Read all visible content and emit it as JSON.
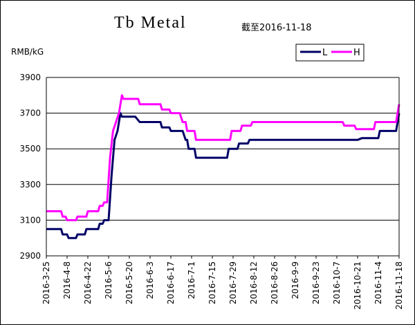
{
  "chart_data": {
    "type": "line",
    "title": "Tb Metal",
    "subtitle": "截至2016-11-18",
    "ylabel": "RMB/kG",
    "ylim": [
      2900,
      3900
    ],
    "yticks": [
      "2900",
      "3100",
      "3300",
      "3500",
      "3700",
      "3900"
    ],
    "xticks": [
      "2016-3-25",
      "2016-4-8",
      "2016-4-22",
      "2016-5-6",
      "2016-5-20",
      "2016-6-3",
      "2016-6-17",
      "2016-7-1",
      "2016-7-15",
      "2016-7-29",
      "2016-8-12",
      "2016-8-26",
      "2016-9-9",
      "2016-9-23",
      "2016-10-7",
      "2016-10-21",
      "2016-11-4",
      "2016-11-18"
    ],
    "grid": true,
    "legend": "top-right",
    "series": [
      {
        "name": "L",
        "color": "#000066",
        "points": [
          [
            "2016-3-25",
            3050
          ],
          [
            "2016-4-4",
            3050
          ],
          [
            "2016-4-5",
            3020
          ],
          [
            "2016-4-8",
            3020
          ],
          [
            "2016-4-9",
            3000
          ],
          [
            "2016-4-14",
            3000
          ],
          [
            "2016-4-15",
            3020
          ],
          [
            "2016-4-20",
            3020
          ],
          [
            "2016-4-21",
            3050
          ],
          [
            "2016-4-29",
            3050
          ],
          [
            "2016-4-30",
            3080
          ],
          [
            "2016-5-2",
            3080
          ],
          [
            "2016-5-3",
            3100
          ],
          [
            "2016-5-6",
            3100
          ],
          [
            "2016-5-8",
            3350
          ],
          [
            "2016-5-10",
            3550
          ],
          [
            "2016-5-12",
            3600
          ],
          [
            "2016-5-14",
            3700
          ],
          [
            "2016-5-15",
            3680
          ],
          [
            "2016-5-24",
            3680
          ],
          [
            "2016-5-27",
            3650
          ],
          [
            "2016-6-10",
            3650
          ],
          [
            "2016-6-11",
            3620
          ],
          [
            "2016-6-16",
            3620
          ],
          [
            "2016-6-17",
            3600
          ],
          [
            "2016-6-25",
            3600
          ],
          [
            "2016-6-27",
            3550
          ],
          [
            "2016-6-28",
            3550
          ],
          [
            "2016-6-29",
            3500
          ],
          [
            "2016-7-3",
            3500
          ],
          [
            "2016-7-4",
            3450
          ],
          [
            "2016-7-25",
            3450
          ],
          [
            "2016-7-26",
            3500
          ],
          [
            "2016-8-1",
            3500
          ],
          [
            "2016-8-2",
            3530
          ],
          [
            "2016-8-8",
            3530
          ],
          [
            "2016-8-9",
            3550
          ],
          [
            "2016-10-21",
            3550
          ],
          [
            "2016-10-24",
            3560
          ],
          [
            "2016-11-4",
            3560
          ],
          [
            "2016-11-5",
            3600
          ],
          [
            "2016-11-16",
            3600
          ],
          [
            "2016-11-18",
            3700
          ]
        ]
      },
      {
        "name": "H",
        "color": "#ff00ff",
        "points": [
          [
            "2016-3-25",
            3150
          ],
          [
            "2016-4-4",
            3150
          ],
          [
            "2016-4-5",
            3120
          ],
          [
            "2016-4-7",
            3120
          ],
          [
            "2016-4-8",
            3100
          ],
          [
            "2016-4-14",
            3100
          ],
          [
            "2016-4-15",
            3120
          ],
          [
            "2016-4-21",
            3120
          ],
          [
            "2016-4-22",
            3150
          ],
          [
            "2016-4-29",
            3150
          ],
          [
            "2016-4-30",
            3180
          ],
          [
            "2016-5-2",
            3180
          ],
          [
            "2016-5-3",
            3200
          ],
          [
            "2016-5-5",
            3200
          ],
          [
            "2016-5-7",
            3450
          ],
          [
            "2016-5-9",
            3600
          ],
          [
            "2016-5-13",
            3700
          ],
          [
            "2016-5-15",
            3800
          ],
          [
            "2016-5-16",
            3780
          ],
          [
            "2016-5-26",
            3780
          ],
          [
            "2016-5-27",
            3750
          ],
          [
            "2016-6-10",
            3750
          ],
          [
            "2016-6-11",
            3720
          ],
          [
            "2016-6-16",
            3720
          ],
          [
            "2016-6-17",
            3700
          ],
          [
            "2016-6-23",
            3700
          ],
          [
            "2016-6-25",
            3650
          ],
          [
            "2016-6-27",
            3650
          ],
          [
            "2016-6-28",
            3600
          ],
          [
            "2016-7-3",
            3600
          ],
          [
            "2016-7-4",
            3550
          ],
          [
            "2016-7-27",
            3550
          ],
          [
            "2016-7-28",
            3600
          ],
          [
            "2016-8-3",
            3600
          ],
          [
            "2016-8-4",
            3630
          ],
          [
            "2016-8-10",
            3630
          ],
          [
            "2016-8-11",
            3650
          ],
          [
            "2016-10-11",
            3650
          ],
          [
            "2016-10-12",
            3630
          ],
          [
            "2016-10-19",
            3630
          ],
          [
            "2016-10-20",
            3610
          ],
          [
            "2016-11-1",
            3610
          ],
          [
            "2016-11-2",
            3650
          ],
          [
            "2016-11-16",
            3650
          ],
          [
            "2016-11-18",
            3750
          ]
        ]
      }
    ]
  }
}
